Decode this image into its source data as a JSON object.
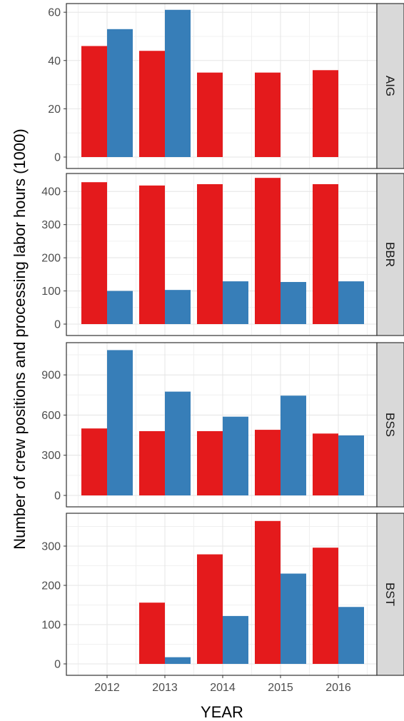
{
  "chart_data": {
    "type": "bar",
    "xlabel": "YEAR",
    "ylabel": "Number of crew positions and processing labor hours (1000)",
    "categories": [
      "2012",
      "2013",
      "2014",
      "2015",
      "2016"
    ],
    "series_colors": [
      "#e41a1c",
      "#377eb8"
    ],
    "grid": true,
    "legend": "none",
    "facets": [
      {
        "label": "AIG",
        "ylim": [
          0,
          63
        ],
        "yticks": [
          0,
          20,
          40,
          60
        ],
        "series": [
          {
            "values": [
              46,
              44,
              35,
              35,
              36
            ]
          },
          {
            "values": [
              53,
              61,
              null,
              null,
              null
            ]
          }
        ]
      },
      {
        "label": "BBR",
        "ylim": [
          0,
          450
        ],
        "yticks": [
          0,
          100,
          200,
          300,
          400
        ],
        "series": [
          {
            "values": [
              428,
              418,
              422,
              441,
              422
            ]
          },
          {
            "values": [
              100,
              103,
              129,
              127,
              129
            ]
          }
        ]
      },
      {
        "label": "BSS",
        "ylim": [
          0,
          1130
        ],
        "yticks": [
          0,
          300,
          600,
          900
        ],
        "series": [
          {
            "values": [
              500,
              480,
              480,
              490,
              462
            ]
          },
          {
            "values": [
              1085,
              775,
              588,
              745,
              448
            ]
          }
        ]
      },
      {
        "label": "BST",
        "ylim": [
          0,
          380
        ],
        "yticks": [
          0,
          100,
          200,
          300
        ],
        "series": [
          {
            "values": [
              null,
              156,
              279,
              364,
              296
            ]
          },
          {
            "values": [
              null,
              17,
              122,
              230,
              145
            ]
          }
        ]
      }
    ]
  }
}
